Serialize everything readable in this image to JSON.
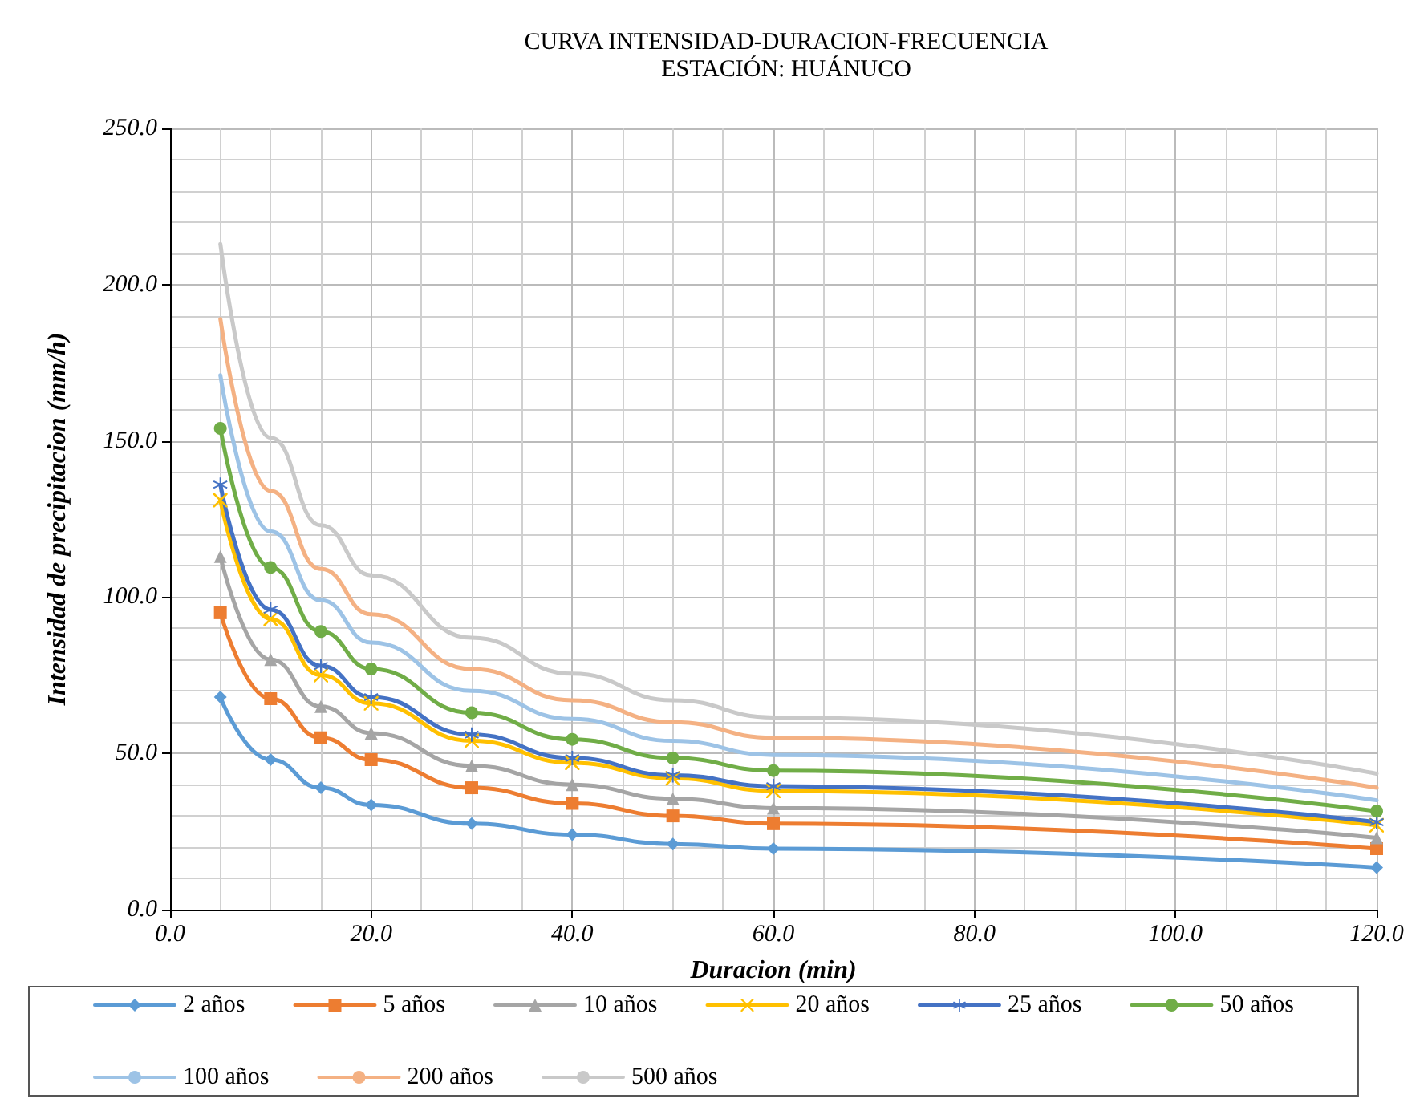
{
  "chart_data": {
    "type": "line",
    "title": "CURVA INTENSIDAD-DURACION-FRECUENCIA",
    "subtitle": "ESTACIÓN: HUÁNUCO",
    "xlabel": "Duracion (min)",
    "ylabel": "Intensidad de precipitacion (mm/h)",
    "x": [
      5,
      10,
      15,
      20,
      30,
      40,
      50,
      60,
      120
    ],
    "xlim": [
      0,
      120
    ],
    "xticks": [
      {
        "value": 0,
        "label": "0.0"
      },
      {
        "value": 20,
        "label": "20.0"
      },
      {
        "value": 40,
        "label": "40.0"
      },
      {
        "value": 60,
        "label": "60.0"
      },
      {
        "value": 80,
        "label": "80.0"
      },
      {
        "value": 100,
        "label": "100.0"
      },
      {
        "value": 120,
        "label": "120.0"
      }
    ],
    "ylim": [
      0,
      250
    ],
    "yticks": [
      {
        "value": 0,
        "label": "0.0"
      },
      {
        "value": 50,
        "label": "50.0"
      },
      {
        "value": 100,
        "label": "100.0"
      },
      {
        "value": 150,
        "label": "150.0"
      },
      {
        "value": 200,
        "label": "200.0"
      },
      {
        "value": 250,
        "label": "250.0"
      }
    ],
    "grid": true,
    "legend": "bottom",
    "line_style": "solid",
    "series": [
      {
        "name": "2 años",
        "color": "#5b9bd5",
        "marker": "diamond",
        "values": [
          68,
          48,
          39,
          33.5,
          27.5,
          24,
          21,
          19.5,
          13.5
        ]
      },
      {
        "name": "5 años",
        "color": "#ed7d31",
        "marker": "square",
        "values": [
          95,
          67.5,
          55,
          48,
          39,
          34,
          30,
          27.5,
          19.5
        ]
      },
      {
        "name": "10 años",
        "color": "#a5a5a5",
        "marker": "triangle",
        "values": [
          113,
          80,
          65,
          56.5,
          46,
          40,
          35.5,
          32.5,
          23
        ]
      },
      {
        "name": "20 años",
        "color": "#ffc000",
        "marker": "cross",
        "values": [
          131,
          93,
          75,
          66,
          54,
          47,
          42,
          38,
          27
        ]
      },
      {
        "name": "25 años",
        "color": "#4472c4",
        "marker": "star",
        "values": [
          136,
          96,
          78,
          68,
          56,
          48.5,
          43,
          39.5,
          28
        ]
      },
      {
        "name": "50 años",
        "color": "#70ad47",
        "marker": "circle",
        "values": [
          154,
          109.5,
          89,
          77,
          63,
          54.5,
          48.5,
          44.5,
          31.5
        ]
      },
      {
        "name": "100 años",
        "color": "#9dc3e6",
        "marker": "none",
        "values": [
          171,
          121,
          99,
          85.5,
          70,
          61,
          54,
          49.5,
          35
        ]
      },
      {
        "name": "200 años",
        "color": "#f4b183",
        "marker": "none",
        "values": [
          189,
          134,
          109,
          94.5,
          77,
          67,
          60,
          55,
          39
        ]
      },
      {
        "name": "500 años",
        "color": "#c9c9c9",
        "marker": "none",
        "values": [
          213,
          151,
          123,
          107,
          87,
          75.5,
          67,
          61.5,
          43.5
        ]
      }
    ]
  }
}
